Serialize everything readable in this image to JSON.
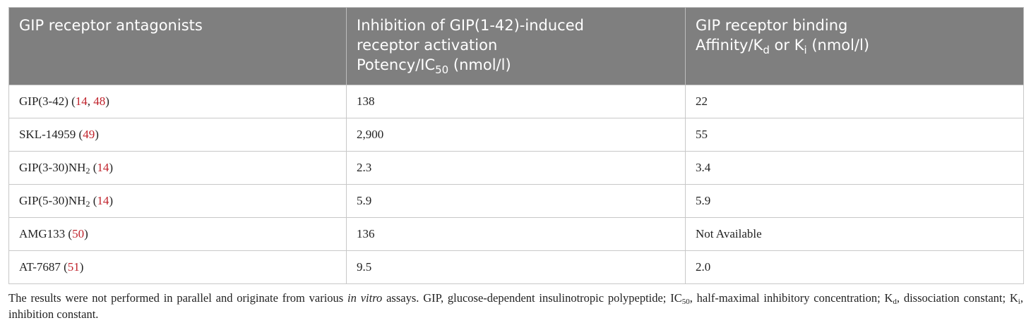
{
  "table": {
    "header": [
      [
        "GIP receptor antagonists"
      ],
      [
        "Inhibition of GIP(1-42)-induced",
        "receptor activation",
        "Potency/IC",
        "50",
        " (nmol/l)"
      ],
      [
        "GIP receptor binding",
        "Affinity/K",
        "d",
        " or K",
        "i",
        " (nmol/l)"
      ]
    ],
    "rows": [
      [
        [
          "GIP(3-42) (",
          "14",
          ", ",
          "48",
          ")"
        ],
        "138",
        "22"
      ],
      [
        [
          "SKL-14959 (",
          "49",
          ")"
        ],
        "2,900",
        "55"
      ],
      [
        [
          "GIP(3-30)NH",
          "2",
          " (",
          "14",
          ")"
        ],
        "2.3",
        "3.4"
      ],
      [
        [
          "GIP(5-30)NH",
          "2",
          " (",
          "14",
          ")"
        ],
        "5.9",
        "5.9"
      ],
      [
        [
          "AMG133 (",
          "50",
          ")"
        ],
        "136",
        "Not Available"
      ],
      [
        [
          "AT-7687 (",
          "51",
          ")"
        ],
        "9.5",
        "2.0"
      ]
    ]
  },
  "footnote": [
    "The results were not performed in parallel and originate from various ",
    "in vitro",
    " assays. GIP, glucose-dependent insulinotropic polypeptide; IC",
    "50",
    ", half-maximal inhibitory concentration; K",
    "d",
    ", dissociation constant; K",
    "i",
    ", inhibition constant."
  ]
}
